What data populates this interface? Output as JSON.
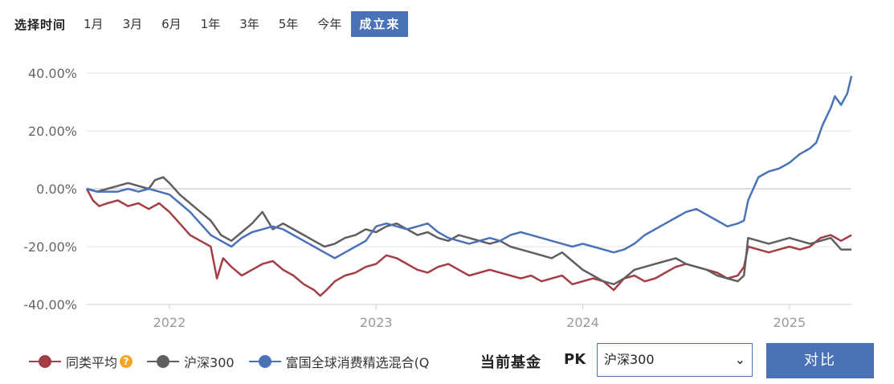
{
  "range_selector": {
    "title": "选择时间",
    "options": [
      "1月",
      "3月",
      "6月",
      "1年",
      "3年",
      "5年",
      "今年",
      "成立来"
    ],
    "active": "成立来"
  },
  "legend": {
    "peer_label": "同类平均",
    "peer_help_icon": "question-icon",
    "index_label": "沪深300",
    "fund_label": "富国全球消费精选混合(Q"
  },
  "pk": {
    "current_label": "当前基金",
    "pk_label": "PK",
    "select_value": "沪深300",
    "compare_button": "对比"
  },
  "colors": {
    "peer": "#a43e46",
    "index": "#5f5f5f",
    "fund": "#4a72b6",
    "accent": "#4a72b6"
  },
  "chart_data": {
    "type": "line",
    "ylim": [
      -40,
      40
    ],
    "y_ticks": [
      "40.00%",
      "20.00%",
      "0.00%",
      "-20.00%",
      "-40.00%"
    ],
    "x_ticks": [
      "2022",
      "2023",
      "2024",
      "2025"
    ],
    "x_tick_values": [
      2022.0,
      2023.0,
      2024.0,
      2025.0
    ],
    "xlim": [
      2021.6,
      2025.3
    ],
    "grid": true,
    "series": [
      {
        "name": "同类平均",
        "color": "#a43e46",
        "x": [
          2021.6,
          2021.63,
          2021.66,
          2021.7,
          2021.75,
          2021.8,
          2021.85,
          2021.9,
          2021.95,
          2022.0,
          2022.05,
          2022.1,
          2022.15,
          2022.2,
          2022.23,
          2022.26,
          2022.3,
          2022.35,
          2022.4,
          2022.45,
          2022.5,
          2022.55,
          2022.6,
          2022.65,
          2022.7,
          2022.73,
          2022.76,
          2022.8,
          2022.85,
          2022.9,
          2022.95,
          2023.0,
          2023.05,
          2023.1,
          2023.15,
          2023.2,
          2023.25,
          2023.3,
          2023.35,
          2023.4,
          2023.45,
          2023.5,
          2023.55,
          2023.6,
          2023.65,
          2023.7,
          2023.75,
          2023.8,
          2023.85,
          2023.9,
          2023.95,
          2024.0,
          2024.05,
          2024.1,
          2024.15,
          2024.2,
          2024.25,
          2024.3,
          2024.35,
          2024.4,
          2024.45,
          2024.5,
          2024.55,
          2024.6,
          2024.65,
          2024.7,
          2024.75,
          2024.78,
          2024.8,
          2024.85,
          2024.9,
          2024.95,
          2025.0,
          2025.05,
          2025.1,
          2025.15,
          2025.2,
          2025.25,
          2025.3
        ],
        "values": [
          0,
          -4,
          -6,
          -5,
          -4,
          -6,
          -5,
          -7,
          -5,
          -8,
          -12,
          -16,
          -18,
          -20,
          -31,
          -24,
          -27,
          -30,
          -28,
          -26,
          -25,
          -28,
          -30,
          -33,
          -35,
          -37,
          -35,
          -32,
          -30,
          -29,
          -27,
          -26,
          -23,
          -24,
          -26,
          -28,
          -29,
          -27,
          -26,
          -28,
          -30,
          -29,
          -28,
          -29,
          -30,
          -31,
          -30,
          -32,
          -31,
          -30,
          -33,
          -32,
          -31,
          -32,
          -35,
          -31,
          -30,
          -32,
          -31,
          -29,
          -27,
          -26,
          -27,
          -28,
          -29,
          -31,
          -30,
          -27,
          -20,
          -21,
          -22,
          -21,
          -20,
          -21,
          -20,
          -17,
          -16,
          -18,
          -16
        ]
      },
      {
        "name": "沪深300",
        "color": "#5f5f5f",
        "x": [
          2021.6,
          2021.65,
          2021.7,
          2021.75,
          2021.8,
          2021.85,
          2021.9,
          2021.93,
          2021.97,
          2022.0,
          2022.05,
          2022.1,
          2022.15,
          2022.2,
          2022.25,
          2022.3,
          2022.35,
          2022.4,
          2022.45,
          2022.5,
          2022.55,
          2022.6,
          2022.65,
          2022.7,
          2022.75,
          2022.8,
          2022.85,
          2022.9,
          2022.95,
          2023.0,
          2023.05,
          2023.1,
          2023.15,
          2023.2,
          2023.25,
          2023.3,
          2023.35,
          2023.4,
          2023.45,
          2023.5,
          2023.55,
          2023.6,
          2023.65,
          2023.7,
          2023.75,
          2023.8,
          2023.85,
          2023.9,
          2023.95,
          2024.0,
          2024.05,
          2024.1,
          2024.15,
          2024.2,
          2024.25,
          2024.3,
          2024.35,
          2024.4,
          2024.45,
          2024.5,
          2024.55,
          2024.6,
          2024.65,
          2024.7,
          2024.75,
          2024.78,
          2024.8,
          2024.85,
          2024.9,
          2024.95,
          2025.0,
          2025.05,
          2025.1,
          2025.15,
          2025.2,
          2025.25,
          2025.3
        ],
        "values": [
          0,
          -1,
          0,
          1,
          2,
          1,
          0,
          3,
          4,
          2,
          -2,
          -5,
          -8,
          -11,
          -16,
          -18,
          -15,
          -12,
          -8,
          -14,
          -12,
          -14,
          -16,
          -18,
          -20,
          -19,
          -17,
          -16,
          -14,
          -15,
          -13,
          -12,
          -14,
          -16,
          -15,
          -17,
          -18,
          -16,
          -17,
          -18,
          -19,
          -18,
          -20,
          -21,
          -22,
          -23,
          -24,
          -22,
          -25,
          -28,
          -30,
          -32,
          -33,
          -31,
          -28,
          -27,
          -26,
          -25,
          -24,
          -26,
          -27,
          -28,
          -30,
          -31,
          -32,
          -30,
          -17,
          -18,
          -19,
          -18,
          -17,
          -18,
          -19,
          -18,
          -17,
          -21,
          -21
        ]
      },
      {
        "name": "富国全球消费精选混合(Q",
        "color": "#4a72b6",
        "x": [
          2021.6,
          2021.65,
          2021.7,
          2021.75,
          2021.8,
          2021.85,
          2021.9,
          2021.95,
          2022.0,
          2022.05,
          2022.1,
          2022.15,
          2022.2,
          2022.25,
          2022.3,
          2022.35,
          2022.4,
          2022.45,
          2022.5,
          2022.55,
          2022.6,
          2022.65,
          2022.7,
          2022.75,
          2022.8,
          2022.85,
          2022.9,
          2022.95,
          2023.0,
          2023.05,
          2023.1,
          2023.15,
          2023.2,
          2023.25,
          2023.3,
          2023.35,
          2023.4,
          2023.45,
          2023.5,
          2023.55,
          2023.6,
          2023.65,
          2023.7,
          2023.75,
          2023.8,
          2023.85,
          2023.9,
          2023.95,
          2024.0,
          2024.05,
          2024.1,
          2024.15,
          2024.2,
          2024.25,
          2024.3,
          2024.35,
          2024.4,
          2024.45,
          2024.5,
          2024.55,
          2024.6,
          2024.65,
          2024.7,
          2024.75,
          2024.78,
          2024.8,
          2024.85,
          2024.9,
          2024.95,
          2025.0,
          2025.05,
          2025.1,
          2025.13,
          2025.16,
          2025.2,
          2025.22,
          2025.25,
          2025.28,
          2025.3
        ],
        "values": [
          0,
          -1,
          -1,
          -1,
          0,
          -1,
          0,
          -1,
          -2,
          -5,
          -8,
          -12,
          -16,
          -18,
          -20,
          -17,
          -15,
          -14,
          -13,
          -14,
          -16,
          -18,
          -20,
          -22,
          -24,
          -22,
          -20,
          -18,
          -13,
          -12,
          -13,
          -14,
          -13,
          -12,
          -15,
          -17,
          -18,
          -19,
          -18,
          -17,
          -18,
          -16,
          -15,
          -16,
          -17,
          -18,
          -19,
          -20,
          -19,
          -20,
          -21,
          -22,
          -21,
          -19,
          -16,
          -14,
          -12,
          -10,
          -8,
          -7,
          -9,
          -11,
          -13,
          -12,
          -11,
          -4,
          4,
          6,
          7,
          9,
          12,
          14,
          16,
          22,
          28,
          32,
          29,
          33,
          39
        ]
      }
    ]
  }
}
